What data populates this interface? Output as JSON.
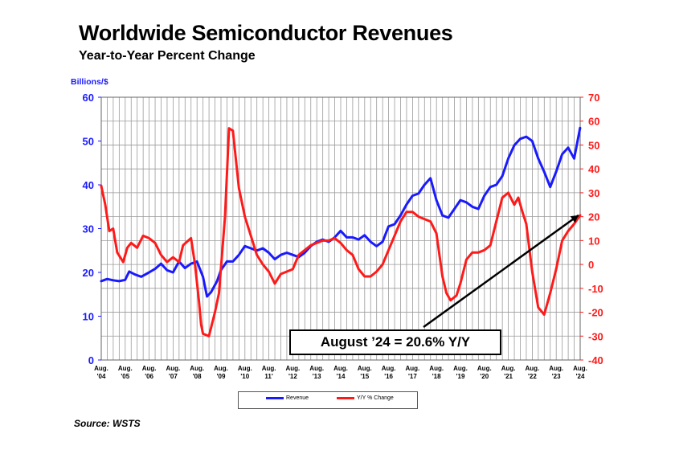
{
  "header": {
    "title": "Worldwide Semiconductor Revenues",
    "subtitle": "Year-to-Year Percent Change"
  },
  "footer": {
    "source": "Source: WSTS"
  },
  "annotation": {
    "text": "August ’24 = 20.6% Y/Y"
  },
  "colors": {
    "revenue": "#1a1aff",
    "yoy": "#ff1a1a",
    "trend_arrow": "#000000"
  },
  "chart_data": {
    "type": "line",
    "title": "Worldwide Semiconductor Revenues",
    "subtitle": "Year-to-Year Percent Change",
    "left_axis_label": "Billions/$",
    "left_ylim": [
      0,
      60
    ],
    "left_ticks": [
      "0",
      "10",
      "20",
      "30",
      "40",
      "50",
      "60"
    ],
    "right_ylim": [
      -40,
      70
    ],
    "right_ticks": [
      "-40",
      "-30",
      "-20",
      "-10",
      "0",
      "10",
      "20",
      "30",
      "40",
      "50",
      "60",
      "70"
    ],
    "x_range": [
      2004.583,
      2024.583
    ],
    "x_ticks": [
      [
        "Aug.",
        "'04"
      ],
      [
        "Aug.",
        "'05"
      ],
      [
        "Aug.",
        "'06"
      ],
      [
        "Aug.",
        "'07"
      ],
      [
        "Aug.",
        "'08"
      ],
      [
        "Aug.",
        "'09"
      ],
      [
        "Aug.",
        "'10"
      ],
      [
        "Aug.",
        "11'"
      ],
      [
        "Aug.",
        "'12"
      ],
      [
        "Aug.",
        "'13"
      ],
      [
        "Aug.",
        "'14"
      ],
      [
        "Aug.",
        "'15"
      ],
      [
        "Aug.",
        "'16"
      ],
      [
        "Aug.",
        "'17"
      ],
      [
        "Aug.",
        "'18"
      ],
      [
        "Aug.",
        "'19"
      ],
      [
        "Aug.",
        "'20"
      ],
      [
        "Aug.",
        "'21"
      ],
      [
        "Aug.",
        "'22"
      ],
      [
        "Aug.",
        "'23"
      ],
      [
        "Aug.",
        "'24"
      ]
    ],
    "grid": true,
    "legend_position": "bottom",
    "series": [
      {
        "name": "Revenue",
        "axis": "left",
        "x": [
          2004.58,
          2004.83,
          2005.08,
          2005.33,
          2005.58,
          2005.75,
          2006.0,
          2006.25,
          2006.58,
          2006.83,
          2007.08,
          2007.33,
          2007.58,
          2007.83,
          2008.08,
          2008.33,
          2008.58,
          2008.83,
          2009.0,
          2009.17,
          2009.42,
          2009.58,
          2009.83,
          2010.08,
          2010.33,
          2010.58,
          2010.83,
          2011.08,
          2011.33,
          2011.58,
          2011.83,
          2012.08,
          2012.33,
          2012.58,
          2012.83,
          2013.08,
          2013.33,
          2013.58,
          2013.83,
          2014.08,
          2014.33,
          2014.58,
          2014.83,
          2015.08,
          2015.33,
          2015.58,
          2015.83,
          2016.08,
          2016.33,
          2016.58,
          2016.83,
          2017.08,
          2017.33,
          2017.58,
          2017.83,
          2018.08,
          2018.33,
          2018.58,
          2018.83,
          2019.08,
          2019.33,
          2019.58,
          2019.83,
          2020.08,
          2020.33,
          2020.58,
          2020.83,
          2021.08,
          2021.33,
          2021.58,
          2021.83,
          2022.08,
          2022.33,
          2022.58,
          2022.83,
          2023.08,
          2023.33,
          2023.58,
          2023.83,
          2024.08,
          2024.33,
          2024.58
        ],
        "values": [
          18,
          18.5,
          18.2,
          18,
          18.3,
          20.2,
          19.5,
          19,
          20,
          20.8,
          22,
          20.5,
          20,
          22.5,
          21,
          22,
          22.5,
          19,
          14.5,
          15.5,
          18,
          20.5,
          22.5,
          22.5,
          24,
          26,
          25.5,
          25,
          25.5,
          24.5,
          23,
          24,
          24.5,
          24,
          23.5,
          24.5,
          26,
          27,
          27.5,
          27,
          28,
          29.5,
          28,
          28,
          27.5,
          28.5,
          27,
          26,
          27,
          30.5,
          31,
          33,
          35.5,
          37.5,
          38,
          40,
          41.5,
          36.5,
          33,
          32.5,
          34.5,
          36.5,
          36,
          35,
          34.5,
          37.5,
          39.5,
          40,
          42,
          46,
          49,
          50.5,
          51,
          50,
          46,
          43,
          39.5,
          43,
          47,
          48.5,
          46,
          53
        ]
      },
      {
        "name": "Y/Y % Change",
        "axis": "right",
        "x": [
          2004.58,
          2004.75,
          2004.92,
          2005.08,
          2005.25,
          2005.5,
          2005.67,
          2005.83,
          2006.08,
          2006.33,
          2006.58,
          2006.83,
          2007.08,
          2007.33,
          2007.58,
          2007.83,
          2008.0,
          2008.33,
          2008.5,
          2008.67,
          2008.75,
          2008.83,
          2009.08,
          2009.33,
          2009.5,
          2009.75,
          2009.92,
          2010.08,
          2010.33,
          2010.58,
          2010.83,
          2011.08,
          2011.33,
          2011.58,
          2011.83,
          2012.08,
          2012.33,
          2012.58,
          2012.83,
          2013.08,
          2013.33,
          2013.58,
          2013.83,
          2014.08,
          2014.33,
          2014.58,
          2014.83,
          2015.08,
          2015.33,
          2015.58,
          2015.83,
          2016.08,
          2016.33,
          2016.58,
          2016.83,
          2017.08,
          2017.33,
          2017.58,
          2017.83,
          2018.08,
          2018.33,
          2018.58,
          2018.83,
          2019.0,
          2019.17,
          2019.42,
          2019.58,
          2019.83,
          2020.08,
          2020.33,
          2020.58,
          2020.83,
          2021.08,
          2021.33,
          2021.58,
          2021.83,
          2022.0,
          2022.17,
          2022.33,
          2022.58,
          2022.83,
          2023.08,
          2023.33,
          2023.58,
          2023.83,
          2024.08,
          2024.33,
          2024.58
        ],
        "values": [
          33,
          25,
          14,
          15,
          5,
          1,
          7,
          9,
          7,
          12,
          11,
          9,
          4,
          1,
          3,
          1,
          8,
          11,
          0,
          -16,
          -25,
          -29,
          -30,
          -20,
          -12,
          20,
          57,
          56,
          32,
          20,
          12,
          4,
          0,
          -3,
          -8,
          -4,
          -3,
          -2,
          4,
          6,
          8,
          9,
          10,
          10,
          11,
          9,
          6,
          4,
          -2,
          -5,
          -5,
          -3,
          0,
          6,
          12,
          18,
          22,
          22,
          20,
          19,
          18,
          13,
          -5,
          -12,
          -15,
          -13,
          -8,
          2,
          5,
          5,
          6,
          8,
          18,
          28,
          30,
          25,
          28,
          22,
          17,
          -3,
          -18,
          -21,
          -12,
          -2,
          10,
          14,
          17,
          20.6
        ]
      }
    ],
    "annotation": "August ’24 = 20.6% Y/Y"
  }
}
